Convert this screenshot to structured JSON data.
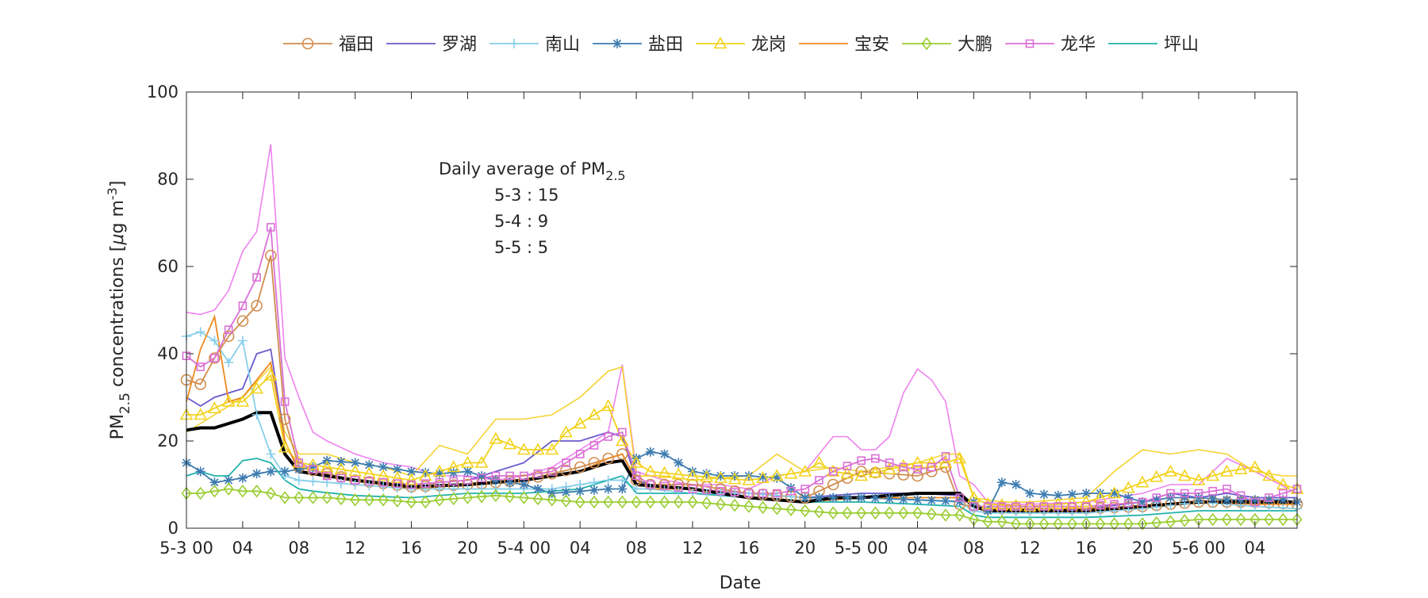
{
  "chart_data": {
    "type": "line",
    "xlabel": "Date",
    "ylabel_main": "PM",
    "ylabel_sub": "2.5",
    "ylabel_rest": " concentrations [",
    "ylabel_mu": "μ",
    "ylabel_unit": "g m",
    "ylabel_exp": "-3",
    "ylabel_close": "]",
    "ylim": [
      0,
      100
    ],
    "yticks": [
      0,
      20,
      40,
      60,
      80,
      100
    ],
    "x_range_hours": [
      0,
      79
    ],
    "xticks": [
      {
        "h": 0,
        "label": "5-3 00"
      },
      {
        "h": 4,
        "label": "04"
      },
      {
        "h": 8,
        "label": "08"
      },
      {
        "h": 12,
        "label": "12"
      },
      {
        "h": 16,
        "label": "16"
      },
      {
        "h": 20,
        "label": "20"
      },
      {
        "h": 24,
        "label": "5-4 00"
      },
      {
        "h": 28,
        "label": "04"
      },
      {
        "h": 32,
        "label": "08"
      },
      {
        "h": 36,
        "label": "12"
      },
      {
        "h": 40,
        "label": "16"
      },
      {
        "h": 44,
        "label": "20"
      },
      {
        "h": 48,
        "label": "5-5 00"
      },
      {
        "h": 52,
        "label": "04"
      },
      {
        "h": 56,
        "label": "08"
      },
      {
        "h": 60,
        "label": "12"
      },
      {
        "h": 64,
        "label": "16"
      },
      {
        "h": 68,
        "label": "20"
      },
      {
        "h": 72,
        "label": "5-6 00"
      },
      {
        "h": 76,
        "label": "04"
      }
    ],
    "grid": false,
    "legend_position": "top",
    "annotation": {
      "title_prefix": "Daily average of PM",
      "title_sub": "2.5",
      "lines": [
        "5-3 : 15",
        "5-4 : 9",
        "5-5 : 5"
      ]
    },
    "series": [
      {
        "name": "福田",
        "color": "#D08D4E",
        "marker": "circle",
        "x": [
          0,
          1,
          2,
          3,
          4,
          5,
          6,
          7,
          8,
          12,
          16,
          20,
          24,
          28,
          30,
          31,
          32,
          33,
          36,
          40,
          44,
          46,
          48,
          52,
          54,
          55,
          56,
          57,
          60,
          64,
          68,
          72,
          76,
          79
        ],
        "y": [
          34,
          33,
          39,
          44,
          47.5,
          51,
          62.5,
          25,
          14,
          11,
          9.5,
          10,
          11,
          14,
          16,
          17,
          11,
          10,
          10,
          8,
          7,
          10,
          13,
          12,
          14,
          5.5,
          5,
          4.5,
          4.5,
          4.5,
          5,
          6,
          6,
          5.5
        ]
      },
      {
        "name": "罗湖",
        "color": "#6A5ACD",
        "marker": "none",
        "x": [
          0,
          1,
          2,
          4,
          5,
          6,
          7,
          8,
          12,
          16,
          20,
          22,
          24,
          26,
          28,
          30,
          31,
          32,
          33,
          36,
          40,
          44,
          48,
          52,
          55,
          56,
          57,
          60,
          64,
          68,
          70,
          72,
          74,
          76,
          79
        ],
        "y": [
          30,
          28,
          30,
          32,
          40,
          41,
          20,
          13,
          11,
          10,
          11,
          13,
          15,
          20,
          20,
          22,
          21,
          11,
          10,
          9,
          8,
          7,
          8,
          8,
          7.5,
          5,
          4.5,
          4.5,
          4.5,
          6,
          8,
          7,
          8,
          7,
          7
        ]
      },
      {
        "name": "南山",
        "color": "#87CEEB",
        "marker": "plus",
        "x": [
          0,
          1,
          2,
          3,
          4,
          5,
          6,
          7,
          8,
          12,
          16,
          20,
          24,
          26,
          28,
          30,
          31,
          32,
          33,
          36,
          40,
          44,
          48,
          52,
          55,
          56,
          57,
          60,
          64,
          68,
          72,
          76,
          79
        ],
        "y": [
          44,
          45,
          43,
          38,
          43,
          26,
          17,
          12,
          11,
          10,
          9,
          9,
          9,
          9,
          10,
          11,
          11,
          9,
          9,
          8,
          8,
          7,
          7,
          6.5,
          6,
          4,
          3.5,
          3.5,
          3.5,
          4.5,
          6,
          5,
          4.5
        ]
      },
      {
        "name": "盐田",
        "color": "#3E7CB1",
        "marker": "star",
        "x": [
          0,
          1,
          2,
          3,
          4,
          5,
          6,
          7,
          8,
          9,
          10,
          12,
          14,
          16,
          18,
          20,
          22,
          24,
          26,
          28,
          30,
          31,
          32,
          33,
          34,
          35,
          36,
          38,
          40,
          42,
          44,
          48,
          52,
          56,
          57,
          58,
          59,
          60,
          62,
          64,
          66,
          68,
          70,
          72,
          74,
          76,
          78,
          79
        ],
        "y": [
          15,
          13,
          10.5,
          11,
          11.5,
          12.5,
          13,
          13,
          13.5,
          14,
          15.5,
          15,
          14,
          13,
          12.5,
          13,
          11,
          10,
          8,
          8.5,
          9,
          9,
          16,
          17.5,
          17,
          15,
          13,
          12,
          12,
          11.5,
          7,
          7,
          6.5,
          6,
          4,
          10.5,
          10,
          8,
          7.5,
          8,
          8,
          6,
          7,
          7,
          6.5,
          6.5,
          6.5,
          6
        ]
      },
      {
        "name": "龙岗",
        "color": "#F2D21B",
        "marker": "triangle",
        "x": [
          0,
          1,
          2,
          3,
          4,
          5,
          6,
          7,
          8,
          10,
          12,
          14,
          16,
          18,
          20,
          21,
          22,
          24,
          26,
          27,
          28,
          29,
          30,
          31,
          32,
          33,
          36,
          40,
          44,
          45,
          46,
          48,
          52,
          54,
          55,
          56,
          57,
          60,
          64,
          66,
          68,
          70,
          72,
          74,
          76,
          78,
          79
        ],
        "y": [
          26,
          26,
          27.5,
          29,
          29,
          32,
          35,
          18.5,
          15,
          14,
          13,
          12,
          11,
          13,
          15,
          15,
          20.5,
          18,
          18,
          22,
          24,
          26,
          28,
          20,
          15,
          13,
          12,
          11,
          13,
          15,
          13,
          12,
          15,
          15,
          16,
          7,
          5.5,
          5,
          6,
          8,
          10.5,
          13,
          11,
          13,
          14,
          10,
          9
        ]
      },
      {
        "name": "宝安",
        "color": "#EE8A1F",
        "marker": "none",
        "x": [
          0,
          1,
          2,
          3,
          4,
          5,
          6,
          7,
          8,
          12,
          16,
          20,
          24,
          28,
          30,
          31,
          32,
          33,
          36,
          40,
          44,
          48,
          52,
          55,
          56,
          57,
          60,
          64,
          68,
          72,
          76,
          79
        ],
        "y": [
          29,
          41,
          48.5,
          29,
          30,
          34,
          38,
          20,
          13,
          11,
          9,
          10,
          11,
          13,
          16,
          17,
          11,
          9,
          9,
          7,
          6,
          7,
          7,
          7,
          5,
          4.5,
          4.5,
          4.5,
          5,
          6,
          5.5,
          5.5
        ]
      },
      {
        "name": "大鹏",
        "color": "#9ACD32",
        "marker": "diamond",
        "x": [
          0,
          1,
          2,
          3,
          4,
          5,
          6,
          7,
          8,
          10,
          12,
          14,
          16,
          17,
          18,
          20,
          22,
          24,
          26,
          28,
          30,
          32,
          34,
          36,
          38,
          40,
          42,
          44,
          46,
          48,
          50,
          52,
          54,
          55,
          56,
          57,
          58,
          59,
          60,
          62,
          64,
          66,
          68,
          70,
          72,
          74,
          76,
          78,
          79
        ],
        "y": [
          8,
          8,
          8.5,
          9,
          8.5,
          8.5,
          8,
          7,
          7,
          7,
          6.5,
          6.5,
          6,
          6,
          6.5,
          7,
          7.5,
          7,
          6.5,
          6,
          6,
          6,
          6,
          6,
          5.5,
          5,
          4.5,
          4,
          3.5,
          3.5,
          3.5,
          3.5,
          3,
          3,
          2,
          1.5,
          1.5,
          1,
          1,
          1,
          1,
          1,
          1,
          1.5,
          2,
          2,
          2,
          2,
          2
        ]
      },
      {
        "name": "龙华",
        "color": "#DA70D6",
        "marker": "square",
        "x": [
          0,
          1,
          2,
          3,
          4,
          5,
          6,
          7,
          8,
          10,
          12,
          16,
          20,
          22,
          24,
          26,
          28,
          30,
          31,
          32,
          33,
          36,
          40,
          42,
          44,
          46,
          48,
          49,
          50,
          51,
          52,
          53,
          54,
          55,
          56,
          57,
          60,
          64,
          68,
          70,
          72,
          74,
          76,
          79
        ],
        "y": [
          39.5,
          37,
          39,
          45.5,
          51,
          57.5,
          69,
          29,
          15,
          12,
          11,
          10,
          11,
          12,
          12,
          13,
          17,
          21,
          22,
          12,
          10,
          9,
          8,
          8,
          9,
          13,
          15.5,
          16,
          15,
          14,
          13.5,
          14,
          16.5,
          7,
          5,
          5,
          5,
          5,
          6,
          8,
          8,
          9,
          6,
          9
        ]
      },
      {
        "name": "坪山",
        "color": "#20B2AA",
        "marker": "none",
        "x": [
          0,
          1,
          2,
          3,
          4,
          5,
          6,
          7,
          8,
          9,
          12,
          16,
          20,
          24,
          28,
          30,
          31,
          32,
          36,
          40,
          44,
          48,
          52,
          55,
          56,
          57,
          60,
          64,
          68,
          72,
          76,
          79
        ],
        "y": [
          12,
          13,
          12,
          12,
          15.5,
          16,
          15,
          11,
          9,
          8.5,
          7.5,
          7,
          8,
          8,
          9,
          11,
          12,
          8,
          8,
          7,
          6,
          6,
          5.5,
          5,
          3,
          2.5,
          2.5,
          2.5,
          3,
          4,
          4,
          4
        ]
      },
      {
        "name": "",
        "color": "#000000",
        "marker": "none",
        "thick": true,
        "x": [
          0,
          1,
          2,
          3,
          4,
          5,
          6,
          7,
          8,
          12,
          16,
          20,
          24,
          28,
          30,
          31,
          32,
          36,
          40,
          44,
          46,
          48,
          50,
          52,
          54,
          55,
          56,
          57,
          60,
          64,
          68,
          72,
          76,
          79
        ],
        "y": [
          22.5,
          23,
          23,
          24,
          25,
          26.5,
          26.5,
          17,
          13,
          11,
          9.5,
          10,
          11,
          13,
          15,
          15.5,
          10,
          9,
          7,
          6,
          7,
          7,
          7.5,
          8,
          8,
          8,
          5,
          4,
          4,
          4,
          5,
          6,
          6,
          6
        ]
      }
    ],
    "extra_lines": [
      {
        "color": "#EE82EE",
        "x": [
          0,
          1,
          2,
          3,
          4,
          5,
          6,
          7,
          8,
          9,
          10,
          12,
          14,
          16,
          18,
          20,
          22,
          24,
          26,
          28,
          30,
          31,
          32,
          33,
          34,
          36,
          38,
          40,
          42,
          44,
          46,
          47,
          48,
          49,
          50,
          51,
          52,
          53,
          54,
          55,
          56,
          57,
          58,
          60,
          64,
          68,
          70,
          72,
          74,
          76,
          79
        ],
        "y": [
          49.5,
          49,
          50,
          54.5,
          63.5,
          68,
          88,
          39,
          30,
          22,
          20,
          17,
          15,
          14,
          12,
          12,
          11,
          12,
          14,
          18,
          22,
          37.5,
          13,
          12,
          11,
          10,
          10,
          9,
          12,
          13,
          21,
          21,
          18,
          18,
          21,
          31,
          36.5,
          34,
          29,
          12,
          10,
          6,
          5.5,
          5.5,
          6,
          8,
          10,
          10,
          16,
          13,
          8
        ]
      },
      {
        "color": "#F5D230",
        "x": [
          0,
          4,
          6,
          7,
          8,
          10,
          12,
          14,
          16,
          18,
          20,
          22,
          24,
          26,
          28,
          30,
          31,
          32,
          34,
          36,
          40,
          42,
          44,
          46,
          48,
          50,
          52,
          54,
          55,
          56,
          58,
          60,
          64,
          66,
          68,
          70,
          72,
          74,
          76,
          78,
          79
        ],
        "y": [
          22,
          30,
          37,
          22,
          17,
          17,
          15,
          14,
          12,
          19,
          17,
          25,
          25,
          26,
          30,
          36,
          37,
          12,
          12,
          11,
          12,
          17,
          13,
          14,
          13,
          14,
          15,
          17,
          17,
          7,
          6,
          6,
          7,
          13,
          18,
          17,
          18,
          17,
          13,
          12,
          12
        ]
      }
    ]
  }
}
